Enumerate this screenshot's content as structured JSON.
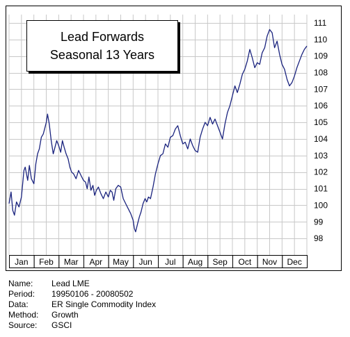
{
  "chart_data": {
    "type": "line",
    "title": "Lead Forwards",
    "subtitle": "Seasonal 13 Years",
    "categories": [
      "Jan",
      "Feb",
      "Mar",
      "Apr",
      "May",
      "Jun",
      "Jul",
      "Aug",
      "Sep",
      "Oct",
      "Nov",
      "Dec"
    ],
    "ylim": [
      97,
      111.5
    ],
    "yticks": [
      98,
      99,
      100,
      101,
      102,
      103,
      104,
      105,
      106,
      107,
      108,
      109,
      110,
      111
    ],
    "grid": true,
    "axis_position": "right",
    "line_color": "#1a237e",
    "series": [
      {
        "x": [
          0,
          0.08,
          0.15,
          0.22,
          0.3,
          0.4,
          0.5,
          0.6,
          0.65,
          0.75,
          0.82,
          0.9,
          1.0,
          1.08,
          1.15,
          1.22,
          1.3,
          1.38,
          1.45,
          1.5,
          1.55,
          1.62,
          1.7,
          1.78,
          1.85,
          1.92,
          2.0,
          2.08,
          2.15,
          2.22,
          2.3,
          2.38,
          2.45,
          2.52,
          2.6,
          2.7,
          2.8,
          2.9,
          3.0,
          3.08,
          3.15,
          3.22,
          3.3,
          3.38,
          3.45,
          3.52,
          3.6,
          3.7,
          3.8,
          3.9,
          4.0,
          4.08,
          4.15,
          4.22,
          4.3,
          4.4,
          4.5,
          4.6,
          4.7,
          4.8,
          4.9,
          5.0,
          5.05,
          5.1,
          5.18,
          5.25,
          5.32,
          5.4,
          5.48,
          5.55,
          5.62,
          5.7,
          5.8,
          5.9,
          6.0,
          6.1,
          6.2,
          6.3,
          6.4,
          6.5,
          6.6,
          6.7,
          6.8,
          6.9,
          7.0,
          7.1,
          7.2,
          7.3,
          7.4,
          7.5,
          7.6,
          7.7,
          7.8,
          7.9,
          8.0,
          8.1,
          8.2,
          8.3,
          8.4,
          8.5,
          8.6,
          8.7,
          8.8,
          8.9,
          9.0,
          9.1,
          9.2,
          9.3,
          9.4,
          9.5,
          9.6,
          9.7,
          9.8,
          9.9,
          10.0,
          10.1,
          10.2,
          10.3,
          10.4,
          10.5,
          10.6,
          10.7,
          10.8,
          10.9,
          11.0,
          11.1,
          11.2,
          11.3,
          11.4,
          11.5,
          11.6,
          11.7,
          11.8,
          11.9,
          12.0
        ],
        "values": [
          100.1,
          100.8,
          99.7,
          99.4,
          100.2,
          99.9,
          100.5,
          102.1,
          102.3,
          101.5,
          102.4,
          101.6,
          101.3,
          102.5,
          103.1,
          103.4,
          104.1,
          104.3,
          104.7,
          105.0,
          105.5,
          104.9,
          103.9,
          103.1,
          103.5,
          103.9,
          103.6,
          103.2,
          103.9,
          103.5,
          103.1,
          102.8,
          102.3,
          102.0,
          101.9,
          101.6,
          102.1,
          101.8,
          101.5,
          101.4,
          101.0,
          101.7,
          100.9,
          101.2,
          100.6,
          100.9,
          101.1,
          100.7,
          100.4,
          100.8,
          100.5,
          100.9,
          100.8,
          100.3,
          101.0,
          101.2,
          101.1,
          100.4,
          100.1,
          99.8,
          99.5,
          99.1,
          98.6,
          98.4,
          98.9,
          99.3,
          99.6,
          100.1,
          100.4,
          100.2,
          100.5,
          100.4,
          101.1,
          101.9,
          102.5,
          103.0,
          103.1,
          103.7,
          103.5,
          104.1,
          104.2,
          104.6,
          104.8,
          104.2,
          103.7,
          103.8,
          103.4,
          104.0,
          103.6,
          103.3,
          103.2,
          104.1,
          104.6,
          105.0,
          104.8,
          105.3,
          104.9,
          105.2,
          104.8,
          104.4,
          104.0,
          104.9,
          105.6,
          106.0,
          106.6,
          107.2,
          106.8,
          107.3,
          107.9,
          108.2,
          108.7,
          109.4,
          108.9,
          108.3,
          108.6,
          108.5,
          109.2,
          109.5,
          110.2,
          110.6,
          110.4,
          109.5,
          109.9,
          109.1,
          108.5,
          108.2,
          107.6,
          107.2,
          107.4,
          107.8,
          108.3,
          108.7,
          109.1,
          109.4,
          109.6
        ]
      }
    ],
    "info": [
      {
        "label": "Name:",
        "value": "Lead LME"
      },
      {
        "label": "Period:",
        "value": "19950106 - 20080502"
      },
      {
        "label": "Data:",
        "value": "ER Single Commodity Index"
      },
      {
        "label": "Method:",
        "value": "Growth"
      },
      {
        "label": "Source:",
        "value": "GSCI"
      }
    ]
  }
}
